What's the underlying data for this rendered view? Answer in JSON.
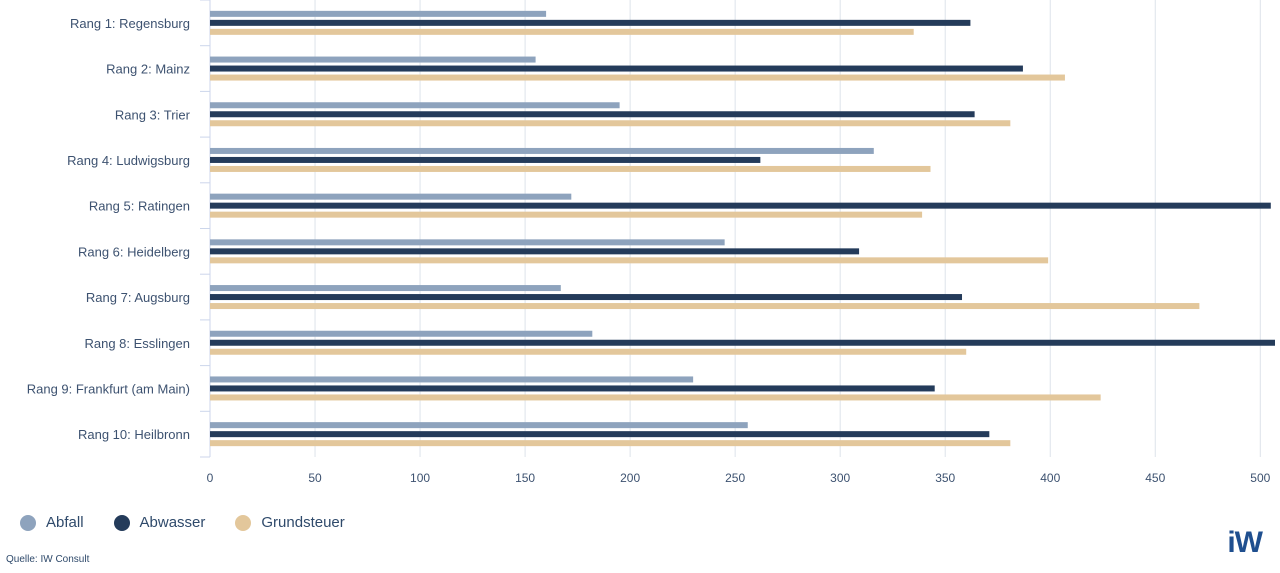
{
  "chart_data": {
    "type": "bar",
    "orientation": "horizontal",
    "categories": [
      "Rang 1: Regensburg",
      "Rang 2: Mainz",
      "Rang 3: Trier",
      "Rang 4: Ludwigsburg",
      "Rang 5: Ratingen",
      "Rang 6: Heidelberg",
      "Rang 7: Augsburg",
      "Rang 8: Esslingen",
      "Rang 9: Frankfurt (am Main)",
      "Rang 10: Heilbronn"
    ],
    "series": [
      {
        "name": "Abfall",
        "color": "#8ea3bd",
        "values": [
          160,
          155,
          195,
          316,
          172,
          245,
          167,
          182,
          230,
          256
        ]
      },
      {
        "name": "Abwasser",
        "color": "#243b5a",
        "values": [
          362,
          387,
          364,
          262,
          505,
          309,
          358,
          507,
          345,
          371
        ]
      },
      {
        "name": "Grundsteuer",
        "color": "#e3c79b",
        "values": [
          335,
          407,
          381,
          343,
          339,
          399,
          471,
          360,
          424,
          381
        ]
      }
    ],
    "xticks": [
      0,
      50,
      100,
      150,
      200,
      250,
      300,
      350,
      400,
      450,
      500
    ],
    "xlim": [
      0,
      507
    ],
    "grid": "vertical",
    "legend_position": "bottom-left"
  },
  "legend": [
    {
      "label": "Abfall",
      "color": "#8ea3bd"
    },
    {
      "label": "Abwasser",
      "color": "#243b5a"
    },
    {
      "label": "Grundsteuer",
      "color": "#e3c79b"
    }
  ],
  "source": "Quelle: IW Consult",
  "logo_text": "iW"
}
